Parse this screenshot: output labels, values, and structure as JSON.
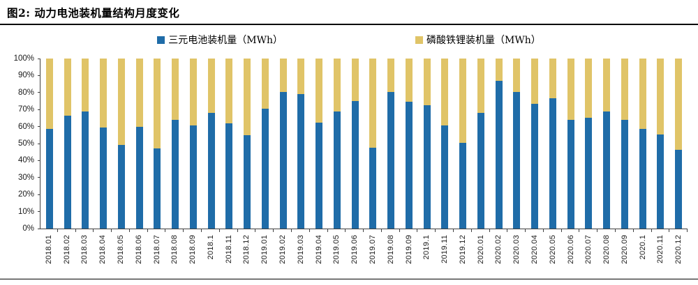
{
  "figure": {
    "title": "图2: 动力电池装机量结构月度变化"
  },
  "legend": {
    "items": [
      {
        "label": "三元电池装机量（MWh）",
        "color": "#1F6CA8"
      },
      {
        "label": "磷酸铁锂装机量（MWh）",
        "color": "#E0C468"
      }
    ]
  },
  "axes": {
    "y_tick_labels": [
      "100%",
      "90%",
      "80%",
      "70%",
      "60%",
      "50%",
      "40%",
      "30%",
      "20%",
      "10%",
      "0%"
    ],
    "axis_color": "#404040"
  },
  "chart_data": {
    "type": "bar",
    "stacked": true,
    "percent_stacked": true,
    "title": "动力电池装机量结构月度变化",
    "xlabel": "",
    "ylabel": "",
    "ylim": [
      0,
      100
    ],
    "y_tick_step": 10,
    "y_tick_format": "percent",
    "grid": false,
    "legend_position": "top",
    "categories": [
      "2018.01",
      "2018.02",
      "2018.03",
      "2018.04",
      "2018.05",
      "2018.06",
      "2018.07",
      "2018.08",
      "2018.09",
      "2018.1",
      "2018.11",
      "2018.12",
      "2019.01",
      "2019.02",
      "2019.03",
      "2019.04",
      "2019.05",
      "2019.06",
      "2019.07",
      "2019.08",
      "2019.09",
      "2019.1",
      "2019.11",
      "2019.12",
      "2020.01",
      "2020.02",
      "2020.03",
      "2020.04",
      "2020.05",
      "2020.06",
      "2020.07",
      "2020.08",
      "2020.09",
      "2020.1",
      "2020.11",
      "2020.12"
    ],
    "series": [
      {
        "name": "三元电池装机量（MWh）",
        "color": "#1F6CA8",
        "values": [
          58.5,
          66.5,
          69,
          59.5,
          49,
          60,
          47,
          64,
          60.5,
          68,
          62,
          55,
          70.5,
          80.5,
          79,
          62.5,
          69,
          75,
          47.5,
          80.5,
          74.5,
          72.5,
          60.5,
          50.5,
          68,
          87,
          80.5,
          73.5,
          76.5,
          64,
          65,
          69,
          64,
          58.5,
          55.5,
          46.5
        ]
      },
      {
        "name": "磷酸铁锂装机量（MWh）",
        "color": "#E0C468",
        "values": [
          41.5,
          33.5,
          31,
          40.5,
          51,
          40,
          53,
          36,
          39.5,
          32,
          38,
          45,
          29.5,
          19.5,
          21,
          37.5,
          31,
          25,
          52.5,
          19.5,
          25.5,
          27.5,
          39.5,
          49.5,
          32,
          13,
          19.5,
          26.5,
          23.5,
          36,
          35,
          31,
          36,
          41.5,
          44.5,
          53.5
        ]
      }
    ]
  }
}
